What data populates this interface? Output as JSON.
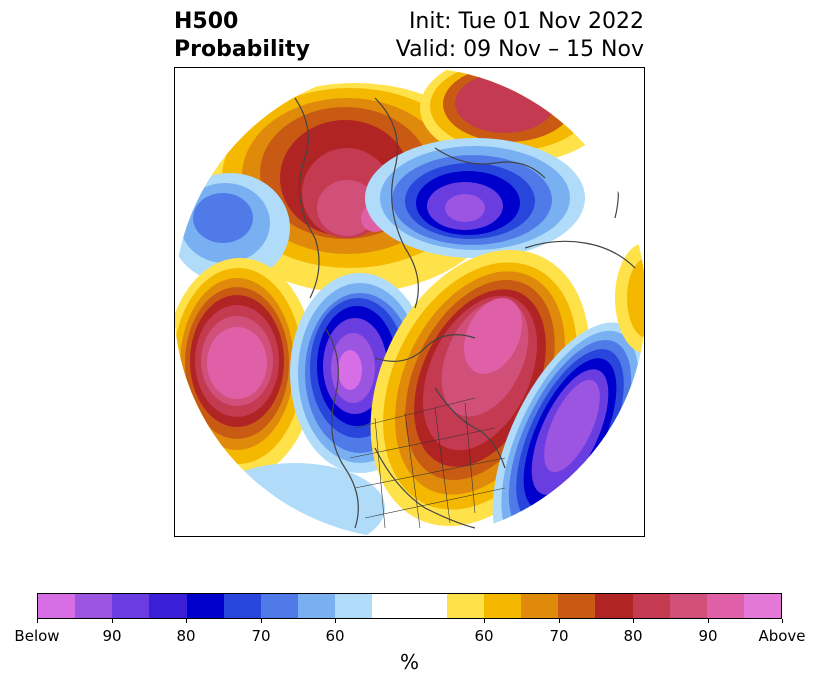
{
  "header": {
    "variable": "H500",
    "product": "Probability",
    "init": "Init: Tue 01 Nov 2022",
    "valid": "Valid: 09 Nov – 15 Nov"
  },
  "colorbar": {
    "unit_label": "%",
    "colors": [
      "#d86ee6",
      "#9b55e0",
      "#6a3de0",
      "#3a1fd6",
      "#0000cc",
      "#2845dc",
      "#4f7ae8",
      "#78b0f2",
      "#b0dcfa",
      "#ffffff",
      "#ffffff",
      "#ffe14a",
      "#f4b800",
      "#e08a0c",
      "#c85a14",
      "#b02424",
      "#c43a50",
      "#d0507a",
      "#e060a8",
      "#e478d8"
    ],
    "tick_labels": [
      "Below",
      "90",
      "80",
      "70",
      "60",
      "60",
      "70",
      "80",
      "90",
      "Above"
    ]
  }
}
